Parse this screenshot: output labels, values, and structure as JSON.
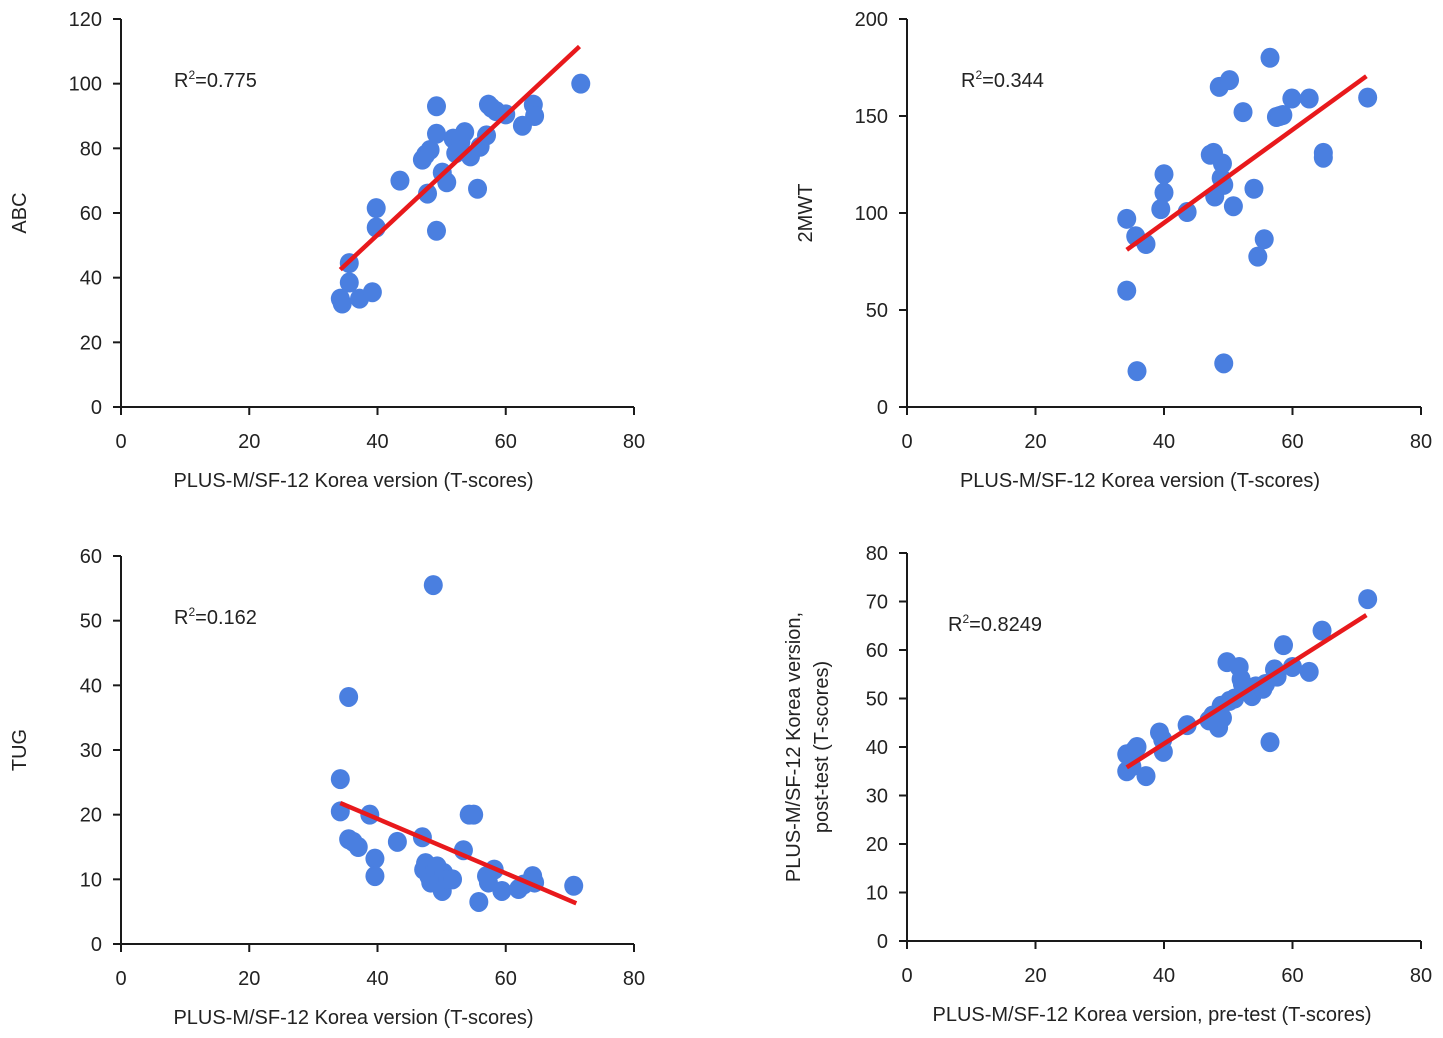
{
  "colors": {
    "point": "#4a7fe0",
    "fit_line": "#e8191c",
    "axis": "#1a1a1a"
  },
  "chart_data": [
    {
      "id": "abc",
      "type": "scatter",
      "title": "",
      "xlabel": "PLUS-M/SF-12 Korea version (T-scores)",
      "ylabel": "ABC",
      "xlim": [
        0,
        80
      ],
      "ylim": [
        0,
        120
      ],
      "xticks": [
        0,
        20,
        40,
        60,
        80
      ],
      "yticks": [
        0,
        20,
        40,
        60,
        80,
        100,
        120
      ],
      "annotation": {
        "prefix": "R",
        "sup": "2",
        "value": "=0.775"
      },
      "fit_line": {
        "x": [
          34.2,
          71.5
        ],
        "y": [
          42.5,
          111.5
        ]
      },
      "points": [
        [
          34.2,
          33.5
        ],
        [
          34.5,
          32
        ],
        [
          35.6,
          44.5
        ],
        [
          35.6,
          38.5
        ],
        [
          37.2,
          33.5
        ],
        [
          39.2,
          35.5
        ],
        [
          39.8,
          61.5
        ],
        [
          39.8,
          55.5
        ],
        [
          43.5,
          70
        ],
        [
          47.0,
          76.5
        ],
        [
          47.5,
          78
        ],
        [
          48.2,
          79.5
        ],
        [
          47.8,
          66
        ],
        [
          49.2,
          93
        ],
        [
          49.2,
          84.5
        ],
        [
          49.2,
          54.5
        ],
        [
          50.1,
          72.5
        ],
        [
          50.8,
          69.5
        ],
        [
          51.8,
          83
        ],
        [
          52.2,
          78.5
        ],
        [
          53.0,
          82
        ],
        [
          53.6,
          85
        ],
        [
          54.5,
          77.5
        ],
        [
          55.6,
          67.5
        ],
        [
          56.0,
          80.5
        ],
        [
          57.0,
          84
        ],
        [
          57.3,
          93.5
        ],
        [
          57.8,
          92.5
        ],
        [
          58.5,
          91.5
        ],
        [
          60.0,
          90.5
        ],
        [
          62.6,
          87
        ],
        [
          64.3,
          93.5
        ],
        [
          64.5,
          90
        ],
        [
          71.7,
          100
        ]
      ]
    },
    {
      "id": "2mwt",
      "type": "scatter",
      "title": "",
      "xlabel": "PLUS-M/SF-12 Korea version (T-scores)",
      "ylabel": "2MWT",
      "xlim": [
        0,
        80
      ],
      "ylim": [
        0,
        200
      ],
      "xticks": [
        0,
        20,
        40,
        60,
        80
      ],
      "yticks": [
        0,
        50,
        100,
        150,
        200
      ],
      "annotation": {
        "prefix": "R",
        "sup": "2",
        "value": "=0.344"
      },
      "fit_line": {
        "x": [
          34.2,
          71.5
        ],
        "y": [
          81,
          170.5
        ]
      },
      "points": [
        [
          34.2,
          97
        ],
        [
          34.2,
          60
        ],
        [
          35.6,
          88
        ],
        [
          35.8,
          18.5
        ],
        [
          37.2,
          84
        ],
        [
          39.5,
          102
        ],
        [
          40.0,
          110.5
        ],
        [
          40.0,
          120
        ],
        [
          43.6,
          100.5
        ],
        [
          47.2,
          130
        ],
        [
          47.7,
          131
        ],
        [
          47.9,
          108.5
        ],
        [
          48.6,
          165
        ],
        [
          48.9,
          118
        ],
        [
          49.1,
          125.5
        ],
        [
          49.3,
          114.5
        ],
        [
          49.3,
          22.5
        ],
        [
          50.2,
          168.5
        ],
        [
          50.8,
          103.5
        ],
        [
          52.3,
          152
        ],
        [
          54.0,
          112.5
        ],
        [
          54.6,
          77.5
        ],
        [
          55.6,
          86.5
        ],
        [
          56.5,
          180
        ],
        [
          57.5,
          149.5
        ],
        [
          58.0,
          150
        ],
        [
          58.5,
          150.5
        ],
        [
          59.9,
          159
        ],
        [
          62.6,
          159
        ],
        [
          64.8,
          131
        ],
        [
          64.8,
          128.5
        ],
        [
          71.7,
          159.5
        ]
      ]
    },
    {
      "id": "tug",
      "type": "scatter",
      "title": "",
      "xlabel": "PLUS-M/SF-12 Korea version (T-scores)",
      "ylabel": "TUG",
      "xlim": [
        0,
        80
      ],
      "ylim": [
        0,
        60
      ],
      "xticks": [
        0,
        20,
        40,
        60,
        80
      ],
      "yticks": [
        0,
        10,
        20,
        30,
        40,
        50,
        60
      ],
      "annotation": {
        "prefix": "R",
        "sup": "2",
        "value": "=0.162"
      },
      "fit_line": {
        "x": [
          34.2,
          71.0
        ],
        "y": [
          21.8,
          6.3
        ]
      },
      "points": [
        [
          34.2,
          25.5
        ],
        [
          34.2,
          20.5
        ],
        [
          35.5,
          38.2
        ],
        [
          35.5,
          16.2
        ],
        [
          36.2,
          15.8
        ],
        [
          37.0,
          15
        ],
        [
          38.8,
          20
        ],
        [
          39.6,
          13.2
        ],
        [
          39.6,
          10.5
        ],
        [
          43.1,
          15.8
        ],
        [
          47.0,
          16.5
        ],
        [
          47.2,
          11.5
        ],
        [
          47.5,
          12.5
        ],
        [
          48.0,
          10.5
        ],
        [
          48.3,
          9.5
        ],
        [
          48.7,
          55.5
        ],
        [
          48.9,
          11.8
        ],
        [
          49.3,
          12
        ],
        [
          49.6,
          9.5
        ],
        [
          50.1,
          8.2
        ],
        [
          50.3,
          11
        ],
        [
          51.0,
          10
        ],
        [
          51.7,
          10
        ],
        [
          53.4,
          14.5
        ],
        [
          54.3,
          20
        ],
        [
          55.0,
          20
        ],
        [
          55.8,
          6.5
        ],
        [
          57.0,
          10.5
        ],
        [
          57.3,
          9.5
        ],
        [
          58.2,
          11.5
        ],
        [
          59.4,
          8.2
        ],
        [
          62.0,
          8.5
        ],
        [
          62.8,
          9.2
        ],
        [
          64.2,
          10.5
        ],
        [
          64.5,
          9.5
        ],
        [
          70.6,
          9
        ]
      ]
    },
    {
      "id": "pre-post",
      "type": "scatter",
      "title": "",
      "xlabel": "PLUS-M/SF-12 Korea version, pre-test (T-scores)",
      "ylabel": [
        "PLUS-M/SF-12 Korea version,",
        "post-test (T-scores)"
      ],
      "xlim": [
        0,
        80
      ],
      "ylim": [
        0,
        80
      ],
      "xticks": [
        0,
        20,
        40,
        60,
        80
      ],
      "yticks": [
        0,
        10,
        20,
        30,
        40,
        50,
        60,
        70,
        80
      ],
      "annotation": {
        "prefix": "R",
        "sup": "2",
        "value": "=0.8249"
      },
      "fit_line": {
        "x": [
          34.2,
          71.5
        ],
        "y": [
          35.8,
          67.2
        ]
      },
      "points": [
        [
          34.2,
          38.5
        ],
        [
          34.2,
          35
        ],
        [
          35.0,
          36
        ],
        [
          35.5,
          39.5
        ],
        [
          35.8,
          40
        ],
        [
          37.2,
          34
        ],
        [
          39.3,
          43
        ],
        [
          39.8,
          41.5
        ],
        [
          39.9,
          39
        ],
        [
          43.6,
          44.5
        ],
        [
          47.0,
          45.5
        ],
        [
          47.6,
          46.5
        ],
        [
          48.2,
          45.5
        ],
        [
          48.5,
          44
        ],
        [
          48.9,
          48.5
        ],
        [
          49.1,
          46
        ],
        [
          49.8,
          57.5
        ],
        [
          50.2,
          49.5
        ],
        [
          51.0,
          50
        ],
        [
          51.7,
          56.5
        ],
        [
          52.0,
          54
        ],
        [
          52.2,
          53
        ],
        [
          53.7,
          50.5
        ],
        [
          54.3,
          52.5
        ],
        [
          55.4,
          52
        ],
        [
          55.8,
          53
        ],
        [
          56.5,
          41
        ],
        [
          57.2,
          56
        ],
        [
          57.6,
          54.5
        ],
        [
          58.6,
          61
        ],
        [
          60.0,
          56.5
        ],
        [
          62.6,
          55.5
        ],
        [
          64.6,
          64
        ],
        [
          71.7,
          70.5
        ]
      ]
    }
  ]
}
